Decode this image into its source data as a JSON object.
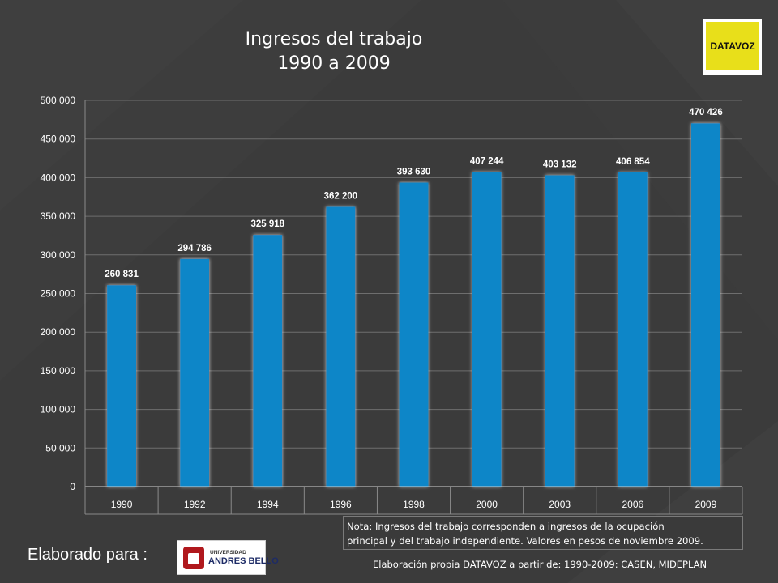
{
  "header": {
    "title_line1": "Ingresos del trabajo",
    "title_line2": "1990 a 2009",
    "logo_text": "DATAVOZ"
  },
  "chart_data": {
    "type": "bar",
    "title": "Ingresos del trabajo 1990 a 2009",
    "xlabel": "",
    "ylabel": "",
    "categories": [
      "1990",
      "1992",
      "1994",
      "1996",
      "1998",
      "2000",
      "2003",
      "2006",
      "2009"
    ],
    "values": [
      260831,
      294786,
      325918,
      362200,
      393630,
      407244,
      403132,
      406854,
      470426
    ],
    "value_labels": [
      "260 831",
      "294 786",
      "325 918",
      "362 200",
      "393 630",
      "407 244",
      "403 132",
      "406 854",
      "470 426"
    ],
    "ylim": [
      0,
      500000
    ],
    "yticks": [
      0,
      50000,
      100000,
      150000,
      200000,
      250000,
      300000,
      350000,
      400000,
      450000,
      500000
    ],
    "ytick_labels": [
      "0",
      "50 000",
      "100 000",
      "150 000",
      "200 000",
      "250 000",
      "300 000",
      "350 000",
      "400 000",
      "450 000",
      "500 000"
    ],
    "grid": true,
    "bar_color": "#0a86c8"
  },
  "note": {
    "line1": "Nota: Ingresos del trabajo corresponden a ingresos de la ocupación",
    "line2": "principal y del trabajo independiente. Valores en pesos de noviembre 2009."
  },
  "footer": {
    "elaborado_label": "Elaborado para :",
    "university_line1": "UNIVERSIDAD",
    "university_line2": "ANDRES BELLO",
    "source": "Elaboración propia DATAVOZ a partir de: 1990-2009: CASEN, MIDEPLAN"
  }
}
